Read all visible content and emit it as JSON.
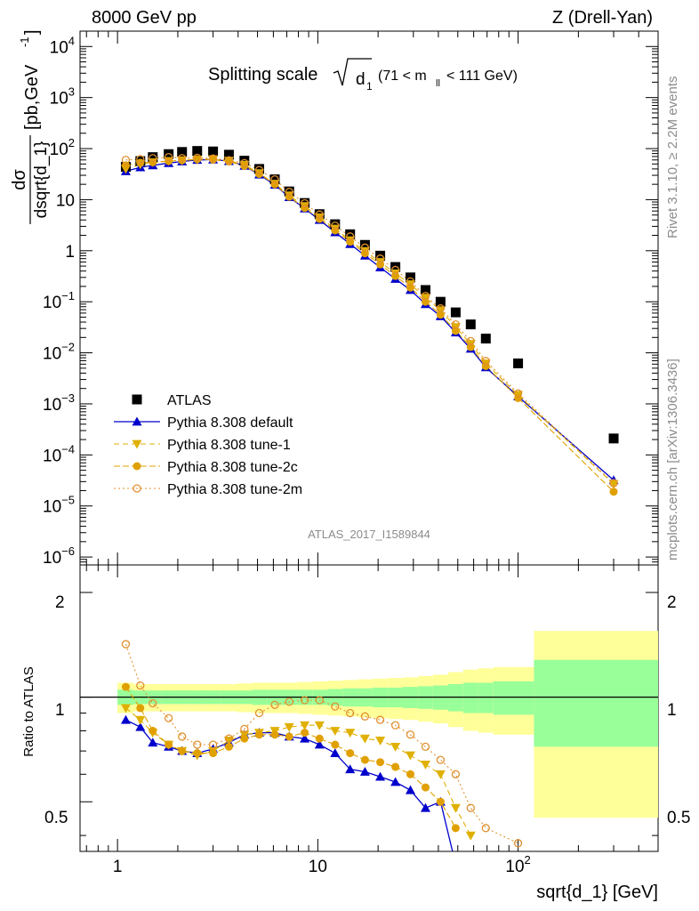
{
  "header": {
    "left": "8000 GeV pp",
    "right": "Z (Drell-Yan)"
  },
  "side": {
    "rivet": "Rivet 3.1.10, ≥ 2.2M events",
    "mcplots": "mcplots.cern.ch [arXiv:1306.3436]"
  },
  "top_panel": {
    "title_main": "Splitting scale",
    "title_sub": "1",
    "title_cond": "(71 < m",
    "title_cond_sub": "ll",
    "title_cond_end": "< 111 GeV)",
    "ylabel_num": "dσ",
    "ylabel_den": "dsqrt{d_1}",
    "ylabel_unit": "[pb,GeV",
    "ylabel_unit_sup": "-1",
    "ylabel_unit_end": "]",
    "analysis_id": "ATLAS_2017_I1589844",
    "yticks": [
      {
        "base": "10",
        "exp": "4"
      },
      {
        "base": "10",
        "exp": "3"
      },
      {
        "base": "10",
        "exp": "2"
      },
      {
        "base": "10",
        "exp": ""
      },
      {
        "base": "1",
        "exp": ""
      },
      {
        "base": "10",
        "exp": "−1"
      },
      {
        "base": "10",
        "exp": "−2"
      },
      {
        "base": "10",
        "exp": "−3"
      },
      {
        "base": "10",
        "exp": "−4"
      },
      {
        "base": "10",
        "exp": "−5"
      },
      {
        "base": "10",
        "exp": "−6"
      }
    ]
  },
  "bottom_panel": {
    "ylabel": "Ratio to ATLAS",
    "yticks_left": [
      "2",
      "1",
      "0.5"
    ],
    "yticks_right": [
      "2",
      "1",
      "0.5"
    ]
  },
  "xaxis": {
    "label": "sqrt{d_1} [GeV]",
    "ticks": [
      {
        "base": "1",
        "exp": ""
      },
      {
        "base": "10",
        "exp": ""
      },
      {
        "base": "10",
        "exp": "2"
      }
    ]
  },
  "legend": [
    {
      "label": "ATLAS",
      "color": "#000000",
      "marker": "square"
    },
    {
      "label": "Pythia 8.308 default",
      "color": "#0000cc",
      "marker": "triangle-up"
    },
    {
      "label": "Pythia 8.308 tune-1",
      "color": "#e0b000",
      "marker": "triangle-down"
    },
    {
      "label": "Pythia 8.308 tune-2c",
      "color": "#e0a000",
      "marker": "circle"
    },
    {
      "label": "Pythia 8.308 tune-2m",
      "color": "#e09030",
      "marker": "open-circle"
    }
  ],
  "chart_data": {
    "type": "scatter",
    "xscale": "log",
    "yscale": "log",
    "xlim": [
      0.65,
      500
    ],
    "ylim": [
      7e-07,
      20000
    ],
    "ratio_ylim": [
      0.36,
      2.4
    ],
    "x": [
      1.1,
      1.3,
      1.5,
      1.8,
      2.1,
      2.5,
      3.0,
      3.6,
      4.3,
      5.1,
      6.1,
      7.2,
      8.6,
      10.2,
      12.2,
      14.5,
      17.2,
      20.5,
      24.4,
      29.0,
      34.5,
      41.0,
      48.8,
      58.0,
      69.0,
      100.0,
      300.0
    ],
    "series": [
      {
        "name": "ATLAS",
        "values": [
          44,
          57,
          68,
          78,
          86,
          90,
          88,
          76,
          58,
          40,
          25,
          14.5,
          8.6,
          5.2,
          3.3,
          2.1,
          1.3,
          0.8,
          0.48,
          0.3,
          0.17,
          0.1,
          0.062,
          0.036,
          0.019,
          0.0062,
          0.00021
        ]
      },
      {
        "name": "Pythia 8.308 default",
        "values": [
          36,
          43,
          47,
          52,
          56,
          60,
          61,
          57,
          46,
          31,
          19.5,
          11.2,
          6.7,
          4.0,
          2.3,
          1.35,
          0.8,
          0.47,
          0.28,
          0.17,
          0.09,
          0.052,
          0.025,
          0.012,
          0.0052,
          0.0014,
          3.2e-05
        ]
      },
      {
        "name": "Pythia 8.308 tune-1",
        "values": [
          40,
          49,
          54,
          57,
          59,
          61,
          62,
          58,
          48,
          33,
          20.5,
          12.1,
          7.5,
          4.5,
          2.7,
          1.6,
          0.98,
          0.6,
          0.36,
          0.22,
          0.12,
          0.068,
          0.032,
          0.015,
          0.0062,
          0.0015,
          2.7e-05
        ]
      },
      {
        "name": "Pythia 8.308 tune-2c",
        "values": [
          47,
          53,
          54,
          57,
          59,
          62,
          61,
          56,
          46,
          32,
          20,
          11.4,
          6.9,
          4.2,
          2.5,
          1.5,
          0.89,
          0.54,
          0.32,
          0.19,
          0.1,
          0.056,
          0.027,
          0.013,
          0.0055,
          0.0013,
          1.9e-05
        ]
      },
      {
        "name": "Pythia 8.308 tune-2m",
        "values": [
          60,
          62,
          65,
          68,
          65,
          66,
          64,
          59,
          52,
          38,
          25,
          14.2,
          8.5,
          5.1,
          3.1,
          1.9,
          1.15,
          0.7,
          0.42,
          0.25,
          0.13,
          0.074,
          0.036,
          0.017,
          0.0069,
          0.0016,
          2.8e-05
        ]
      }
    ],
    "ratio_series": [
      {
        "name": "Pythia 8.308 default",
        "values": [
          0.86,
          0.82,
          0.74,
          0.72,
          0.7,
          0.69,
          0.71,
          0.74,
          0.78,
          0.79,
          0.79,
          0.77,
          0.76,
          0.73,
          0.69,
          0.62,
          0.61,
          0.59,
          0.57,
          0.54,
          0.48,
          0.5,
          0.33
        ]
      },
      {
        "name": "Pythia 8.308 tune-1",
        "values": [
          0.93,
          0.86,
          0.79,
          0.73,
          0.7,
          0.68,
          0.7,
          0.75,
          0.78,
          0.79,
          0.8,
          0.82,
          0.83,
          0.83,
          0.8,
          0.79,
          0.76,
          0.75,
          0.72,
          0.68,
          0.64,
          0.6,
          0.48,
          0.4
        ]
      },
      {
        "name": "Pythia 8.308 tune-2c",
        "values": [
          1.07,
          0.93,
          0.8,
          0.73,
          0.7,
          0.69,
          0.69,
          0.72,
          0.76,
          0.78,
          0.78,
          0.77,
          0.79,
          0.76,
          0.73,
          0.69,
          0.66,
          0.65,
          0.63,
          0.6,
          0.55,
          0.5,
          0.42
        ]
      },
      {
        "name": "Pythia 8.308 tune-2m",
        "values": [
          1.42,
          1.08,
          0.96,
          0.87,
          0.77,
          0.73,
          0.73,
          0.76,
          0.81,
          0.9,
          0.95,
          0.97,
          0.98,
          0.98,
          0.94,
          0.9,
          0.88,
          0.86,
          0.83,
          0.78,
          0.72,
          0.66,
          0.6,
          0.48,
          0.42,
          0.38
        ]
      }
    ],
    "ratio_x": [
      1.1,
      1.3,
      1.5,
      1.8,
      2.1,
      2.5,
      3.0,
      3.6,
      4.3,
      5.1,
      6.1,
      7.2,
      8.6,
      10.2,
      12.2,
      14.5,
      17.2,
      20.5,
      24.4,
      29.0,
      34.5,
      41.0,
      48.8,
      58.0,
      69.0,
      100.0
    ],
    "band_edges": [
      1.0,
      1.2,
      1.4,
      1.65,
      1.95,
      2.3,
      2.75,
      3.3,
      3.95,
      4.7,
      5.6,
      6.65,
      7.9,
      9.4,
      11.2,
      13.3,
      15.8,
      18.8,
      22.4,
      26.6,
      31.7,
      37.6,
      44.8,
      53.2,
      63.3,
      75.3,
      120.0,
      500.0
    ],
    "band_inner": [
      0.05,
      0.045,
      0.045,
      0.045,
      0.045,
      0.045,
      0.045,
      0.045,
      0.045,
      0.05,
      0.05,
      0.05,
      0.05,
      0.05,
      0.055,
      0.06,
      0.06,
      0.065,
      0.065,
      0.07,
      0.075,
      0.08,
      0.09,
      0.1,
      0.1,
      0.11,
      0.28
    ],
    "band_outer": [
      0.1,
      0.09,
      0.09,
      0.09,
      0.09,
      0.09,
      0.09,
      0.09,
      0.095,
      0.1,
      0.1,
      0.1,
      0.105,
      0.11,
      0.115,
      0.12,
      0.125,
      0.13,
      0.135,
      0.14,
      0.15,
      0.16,
      0.18,
      0.2,
      0.21,
      0.22,
      0.55
    ],
    "grid": false,
    "legend_position": "bottom-left"
  }
}
